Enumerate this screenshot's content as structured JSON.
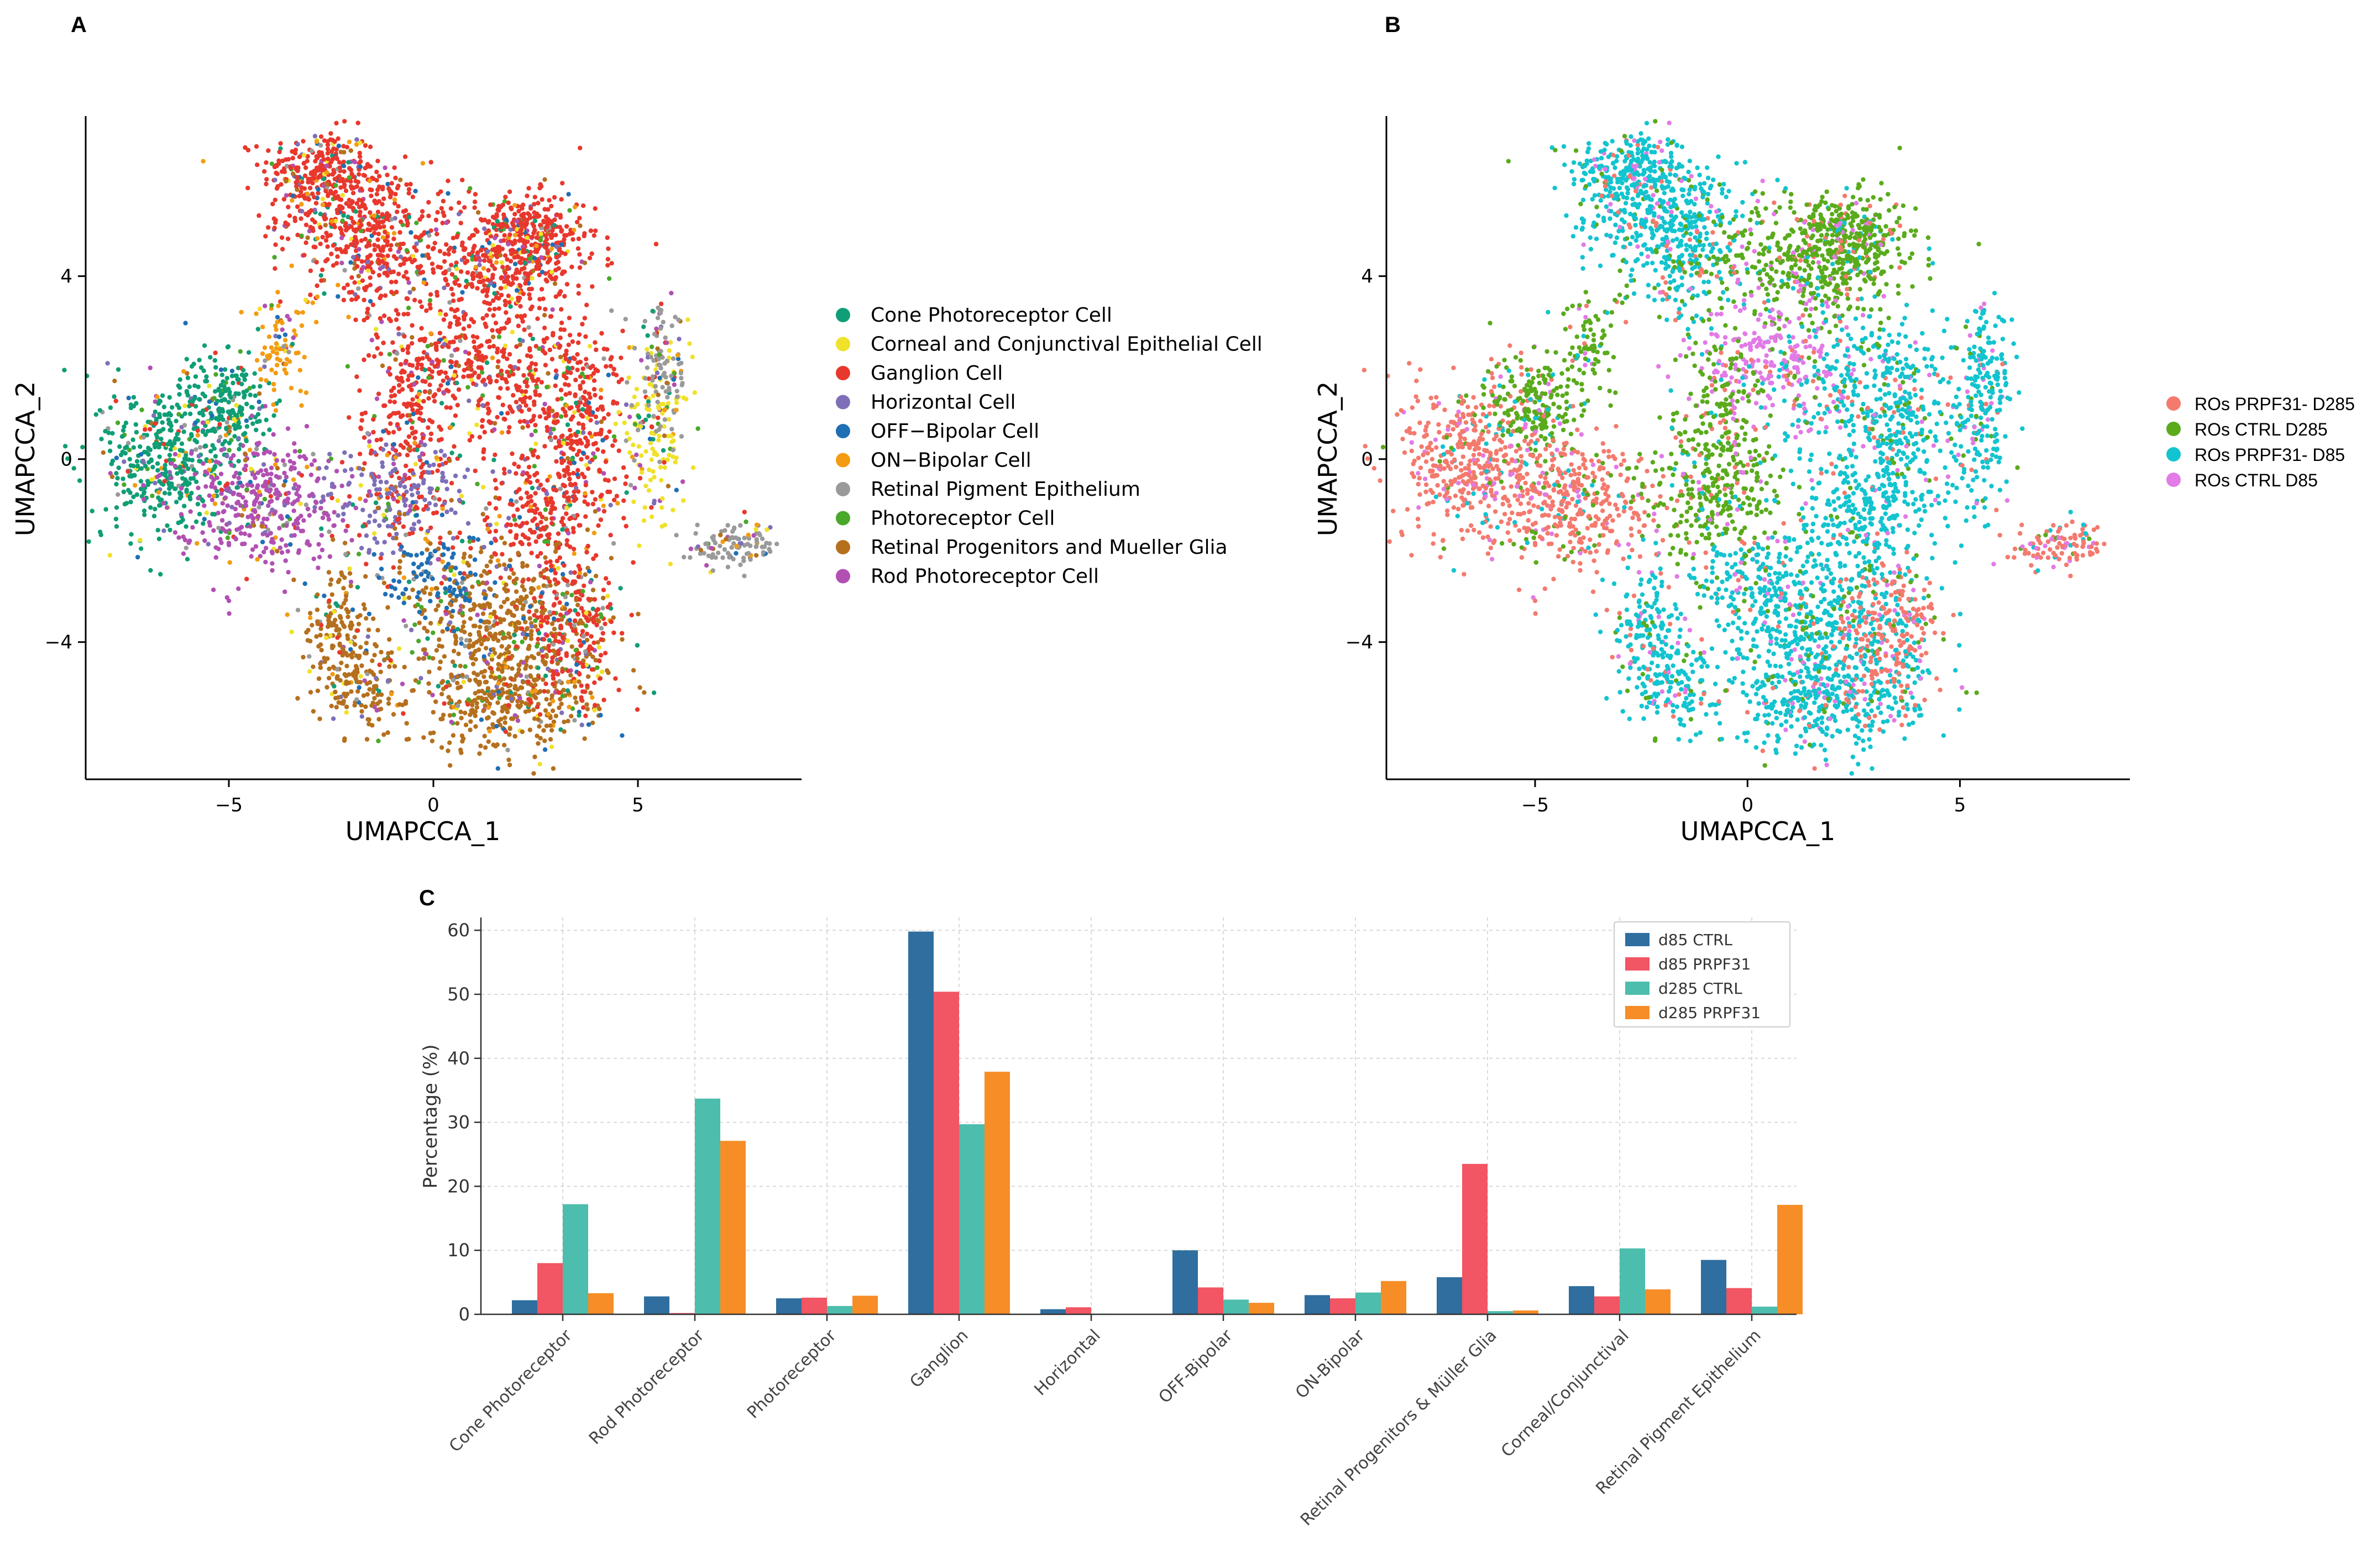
{
  "chart_data": [
    {
      "panel": "A",
      "type": "scatter",
      "xlabel": "UMAPCCA_1",
      "ylabel": "UMAPCCA_2",
      "xlim": [
        -8.5,
        9
      ],
      "ylim": [
        -7,
        7.5
      ],
      "xticks": [
        -5,
        0,
        5
      ],
      "yticks": [
        -4,
        0,
        4
      ],
      "xtick_labels": [
        "−5",
        "0",
        "5"
      ],
      "ytick_labels": [
        "−4",
        "0",
        "4"
      ],
      "legend": [
        {
          "label": "Cone Photoreceptor Cell",
          "color": "#0f9e76"
        },
        {
          "label": "Corneal and Conjunctival Epithelial Cell",
          "color": "#f0e12a"
        },
        {
          "label": "Ganglion Cell",
          "color": "#e8382d"
        },
        {
          "label": "Horizontal Cell",
          "color": "#7e6fb8"
        },
        {
          "label": "OFF−Bipolar Cell",
          "color": "#1f6fb5"
        },
        {
          "label": "ON−Bipolar Cell",
          "color": "#f39c12"
        },
        {
          "label": "Retinal Pigment Epithelium",
          "color": "#9a9a9a"
        },
        {
          "label": "Photoreceptor Cell",
          "color": "#4aa82a"
        },
        {
          "label": "Retinal Progenitors and Mueller Glia",
          "color": "#b5701e"
        },
        {
          "label": "Rod Photoreceptor Cell",
          "color": "#b150b2"
        }
      ]
    },
    {
      "panel": "B",
      "type": "scatter",
      "xlabel": "UMAPCCA_1",
      "ylabel": "UMAPCCA_2",
      "xlim": [
        -8.5,
        9
      ],
      "ylim": [
        -7,
        7.5
      ],
      "xticks": [
        -5,
        0,
        5
      ],
      "yticks": [
        -4,
        0,
        4
      ],
      "xtick_labels": [
        "−5",
        "0",
        "5"
      ],
      "ytick_labels": [
        "−4",
        "0",
        "4"
      ],
      "legend": [
        {
          "label": "ROs PRPF31- D285",
          "color": "#f47a6e"
        },
        {
          "label": "ROs CTRL D285",
          "color": "#5aab1b"
        },
        {
          "label": "ROs PRPF31- D85",
          "color": "#12c4cf"
        },
        {
          "label": "ROs CTRL D85",
          "color": "#e27be6"
        }
      ]
    },
    {
      "panel": "C",
      "type": "bar",
      "ylabel": "Percentage (%)",
      "ylim": [
        0,
        62
      ],
      "yticks": [
        0,
        10,
        20,
        30,
        40,
        50,
        60
      ],
      "grid": true,
      "legend_position": "top-right",
      "categories": [
        "Cone Photoreceptor",
        "Rod Photoreceptor",
        "Photoreceptor",
        "Ganglion",
        "Horizontal",
        "OFF-Bipolar",
        "ON-Bipolar",
        "Retinal Progenitors & Müller Glia",
        "Corneal/Conjunctival",
        "Retinal Pigment Epithelium"
      ],
      "series": [
        {
          "name": "d85 CTRL",
          "color": "#2f6e9f",
          "values": [
            2.2,
            2.8,
            2.5,
            59.8,
            0.8,
            10.0,
            3.0,
            5.8,
            4.4,
            8.5
          ]
        },
        {
          "name": "d85 PRPF31",
          "color": "#f25563",
          "values": [
            8.0,
            0.2,
            2.6,
            50.4,
            1.1,
            4.2,
            2.5,
            23.5,
            2.8,
            4.1
          ]
        },
        {
          "name": "d285 CTRL",
          "color": "#4dbdad",
          "values": [
            17.2,
            33.7,
            1.3,
            29.7,
            0.1,
            2.3,
            3.4,
            0.5,
            10.3,
            1.2
          ]
        },
        {
          "name": "d285 PRPF31",
          "color": "#f68d27",
          "values": [
            3.3,
            27.1,
            2.9,
            37.9,
            0.0,
            1.8,
            5.2,
            0.6,
            3.9,
            17.1
          ]
        }
      ]
    }
  ],
  "labels": {
    "a": "A",
    "b": "B",
    "c": "C"
  }
}
